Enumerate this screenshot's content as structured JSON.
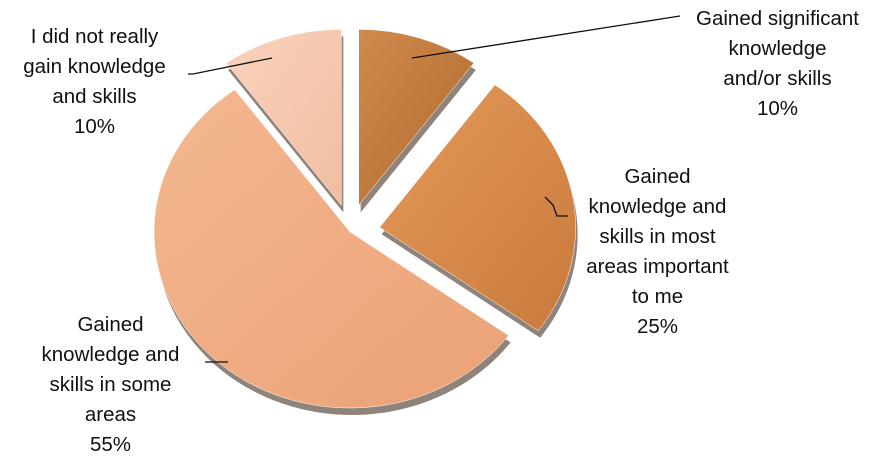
{
  "chart_data": {
    "type": "pie",
    "exploded": true,
    "style": "3d",
    "slices": [
      {
        "label_lines": [
          "Gained significant",
          "knowledge",
          "and/or skills"
        ],
        "percent_label": "10%",
        "value": 10,
        "color": "#c07a3e"
      },
      {
        "label_lines": [
          "Gained",
          "knowledge and",
          "skills in most",
          "areas important",
          "to me"
        ],
        "percent_label": "25%",
        "value": 25,
        "color": "#db8d4f"
      },
      {
        "label_lines": [
          "Gained",
          "knowledge and",
          "skills in some",
          "areas"
        ],
        "percent_label": "55%",
        "value": 55,
        "color": "#f0a980"
      },
      {
        "label_lines": [
          "I did not really",
          "gain knowledge",
          "and skills"
        ],
        "percent_label": "10%",
        "value": 10,
        "color": "#f5c6ad"
      }
    ]
  }
}
